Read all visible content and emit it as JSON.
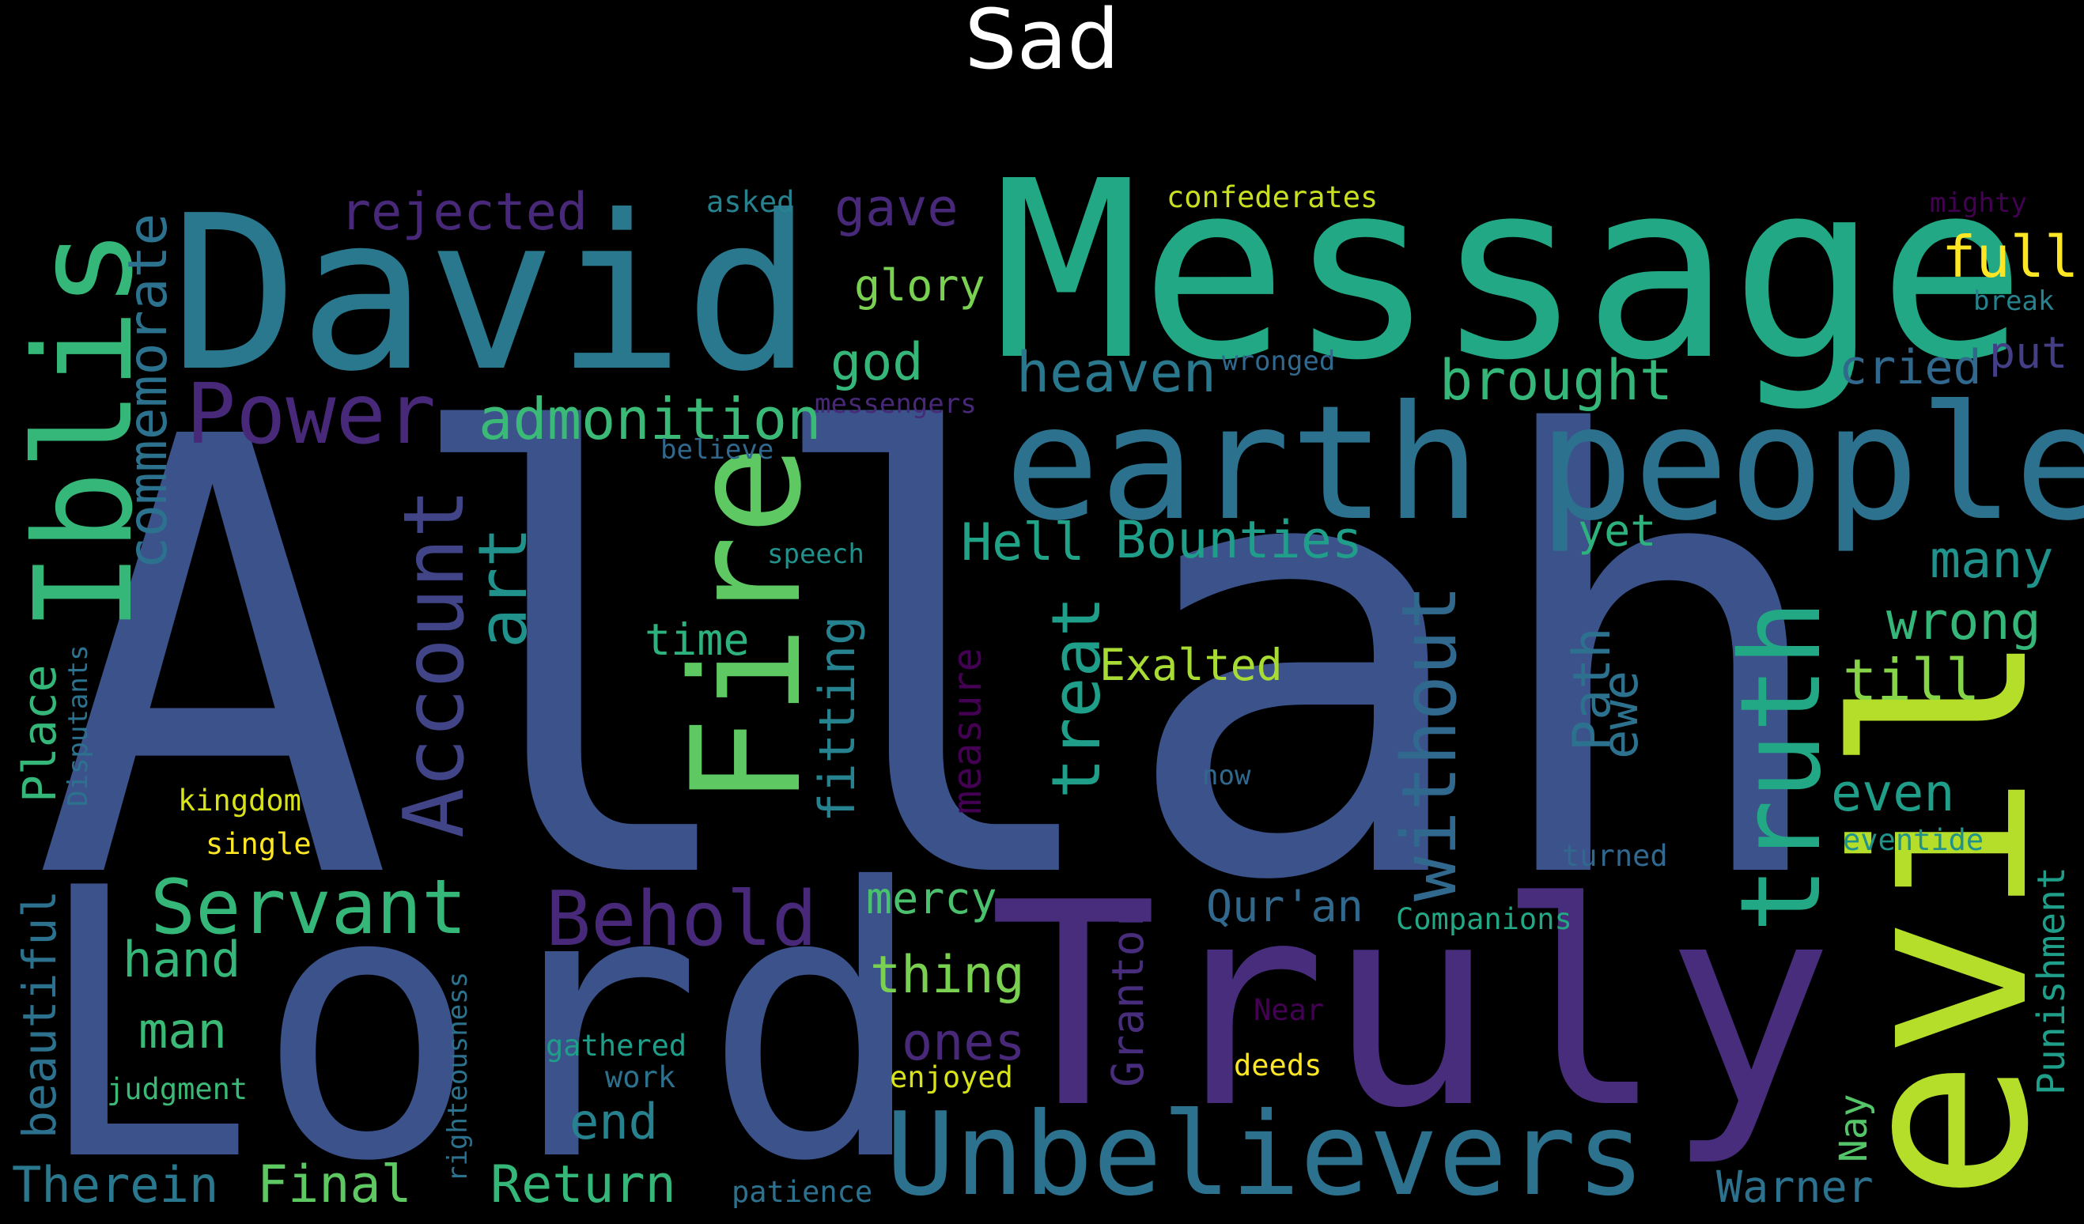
{
  "title": "Sad",
  "words": [
    {
      "text": "Allah",
      "color": "#3b528b"
    },
    {
      "text": "Lord",
      "color": "#3b528b"
    },
    {
      "text": "Truly",
      "color": "#472d7b"
    },
    {
      "text": "Message",
      "color": "#22a884"
    },
    {
      "text": "David",
      "color": "#2a788e"
    },
    {
      "text": "evil",
      "color": "#b5de2b"
    },
    {
      "text": "earth",
      "color": "#2c728e"
    },
    {
      "text": "people",
      "color": "#2c728e"
    },
    {
      "text": "Iblis",
      "color": "#35b779"
    },
    {
      "text": "Fire",
      "color": "#5ec962"
    },
    {
      "text": "Unbelievers",
      "color": "#2c728e"
    },
    {
      "text": "truth",
      "color": "#22a884"
    },
    {
      "text": "Power",
      "color": "#482878"
    },
    {
      "text": "Account",
      "color": "#414487"
    },
    {
      "text": "Servant",
      "color": "#35b779"
    },
    {
      "text": "Behold",
      "color": "#482878"
    },
    {
      "text": "without",
      "color": "#31688e"
    },
    {
      "text": "commemorate",
      "color": "#2c728e"
    },
    {
      "text": "treat",
      "color": "#1f9e89"
    },
    {
      "text": "art",
      "color": "#21918c"
    },
    {
      "text": "admonition",
      "color": "#3aba76"
    },
    {
      "text": "rejected",
      "color": "#482878"
    },
    {
      "text": "gave",
      "color": "#482878"
    },
    {
      "text": "heaven",
      "color": "#2a788e"
    },
    {
      "text": "brought",
      "color": "#35b779"
    },
    {
      "text": "full",
      "color": "#fde725"
    },
    {
      "text": "cried",
      "color": "#31688e"
    },
    {
      "text": "put",
      "color": "#433e85"
    },
    {
      "text": "glory",
      "color": "#7ad151"
    },
    {
      "text": "god",
      "color": "#35b779"
    },
    {
      "text": "Hell",
      "color": "#20a386"
    },
    {
      "text": "Bounties",
      "color": "#1f9e89"
    },
    {
      "text": "yet",
      "color": "#2db27d"
    },
    {
      "text": "many",
      "color": "#21918c"
    },
    {
      "text": "wrong",
      "color": "#35b779"
    },
    {
      "text": "till",
      "color": "#86d549"
    },
    {
      "text": "even",
      "color": "#1f9e89"
    },
    {
      "text": "Exalted",
      "color": "#a8db34"
    },
    {
      "text": "time",
      "color": "#2db27d"
    },
    {
      "text": "fitting",
      "color": "#26828e"
    },
    {
      "text": "measure",
      "color": "#440154"
    },
    {
      "text": "Path",
      "color": "#2c728e"
    },
    {
      "text": "ewe",
      "color": "#2c728e"
    },
    {
      "text": "beautiful",
      "color": "#2c728e"
    },
    {
      "text": "Place",
      "color": "#35b779"
    },
    {
      "text": "Disputants",
      "color": "#2c728e"
    },
    {
      "text": "kingdom",
      "color": "#d8e219"
    },
    {
      "text": "single",
      "color": "#fde725"
    },
    {
      "text": "hand",
      "color": "#35b779"
    },
    {
      "text": "man",
      "color": "#3aba76"
    },
    {
      "text": "mercy",
      "color": "#4ac16d"
    },
    {
      "text": "thing",
      "color": "#7ad151"
    },
    {
      "text": "ones",
      "color": "#482878"
    },
    {
      "text": "Qur'an",
      "color": "#31688e"
    },
    {
      "text": "Grantor",
      "color": "#472d7b"
    },
    {
      "text": "Companions",
      "color": "#22a884"
    },
    {
      "text": "Punishment",
      "color": "#1f9e89"
    },
    {
      "text": "eventide",
      "color": "#21918c"
    },
    {
      "text": "turned",
      "color": "#31688e"
    },
    {
      "text": "Near",
      "color": "#440154"
    },
    {
      "text": "Nay",
      "color": "#54c568"
    },
    {
      "text": "Warner",
      "color": "#2c728e"
    },
    {
      "text": "Therein",
      "color": "#2a788e"
    },
    {
      "text": "Final",
      "color": "#5ec962"
    },
    {
      "text": "Return",
      "color": "#35b779"
    },
    {
      "text": "end",
      "color": "#26828e"
    },
    {
      "text": "patience",
      "color": "#2c728e"
    },
    {
      "text": "righteousness",
      "color": "#2c728e"
    },
    {
      "text": "judgment",
      "color": "#3aba76"
    },
    {
      "text": "gathered",
      "color": "#1f9e89"
    },
    {
      "text": "work",
      "color": "#2c728e"
    },
    {
      "text": "enjoyed",
      "color": "#d8e219"
    },
    {
      "text": "deeds",
      "color": "#fde725"
    },
    {
      "text": "confederates",
      "color": "#c8e020"
    },
    {
      "text": "asked",
      "color": "#26828e"
    },
    {
      "text": "mighty",
      "color": "#440154"
    },
    {
      "text": "break",
      "color": "#26828e"
    },
    {
      "text": "wronged",
      "color": "#31688e"
    },
    {
      "text": "messengers",
      "color": "#482878"
    },
    {
      "text": "believe",
      "color": "#31688e"
    },
    {
      "text": "speech",
      "color": "#21918c"
    },
    {
      "text": "now",
      "color": "#31688e"
    }
  ]
}
